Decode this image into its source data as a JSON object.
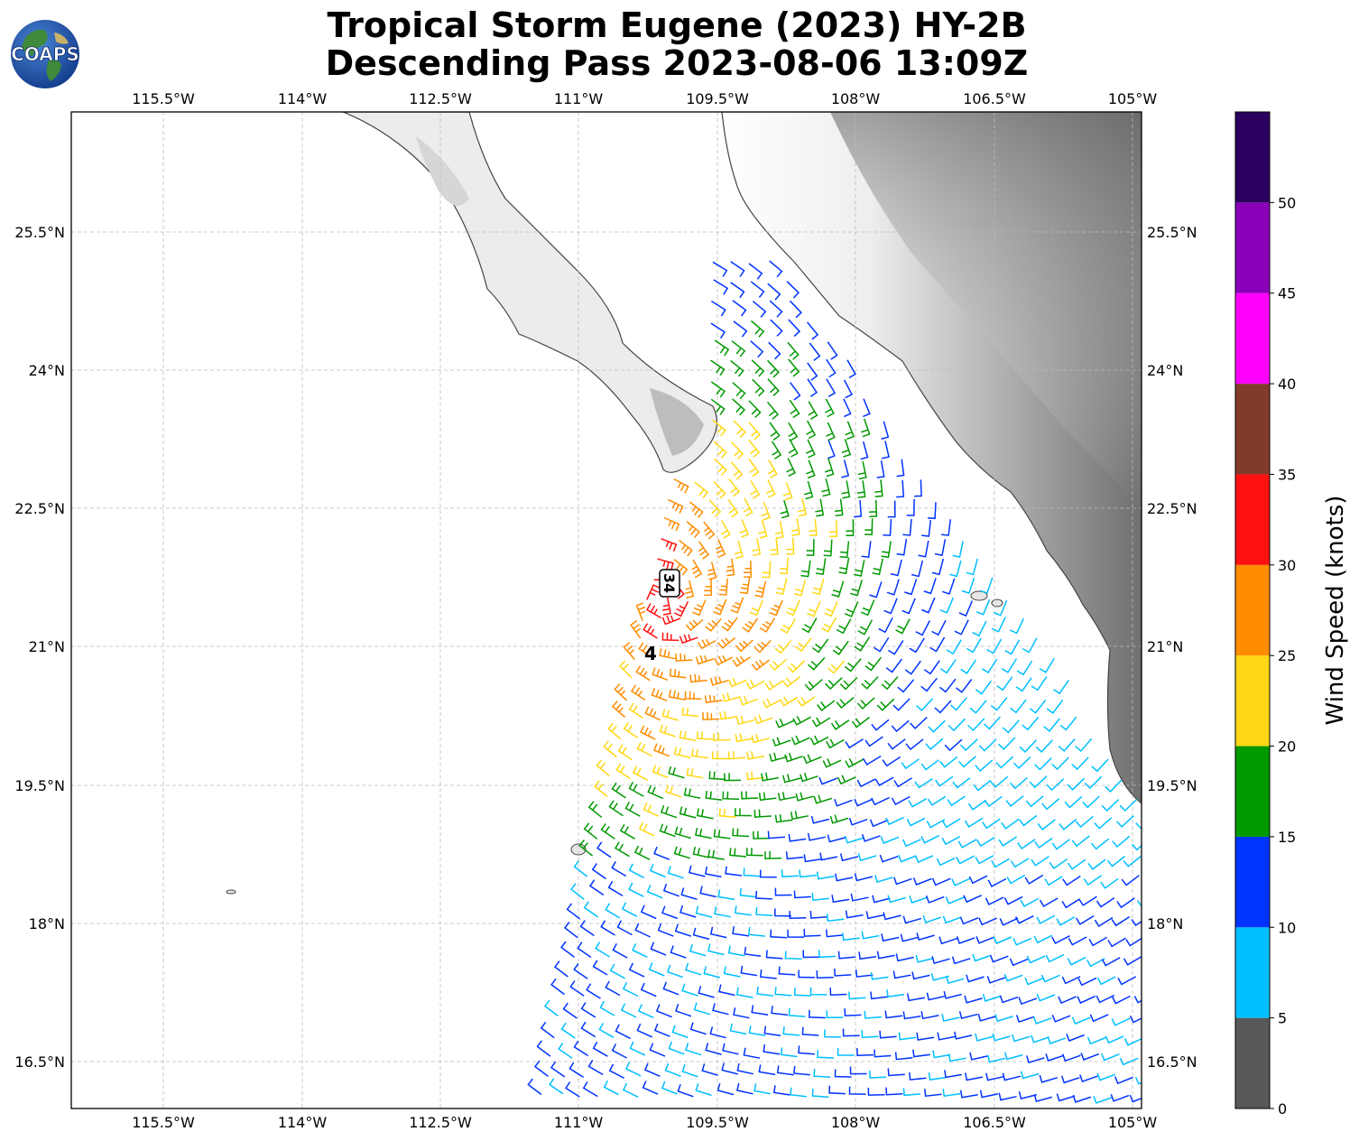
{
  "header": {
    "title_line1": "Tropical Storm Eugene (2023) HY-2B",
    "title_line2": "Descending Pass 2023-08-06 13:09Z",
    "logo_text": "COAPS"
  },
  "map": {
    "lon_labels": [
      "115.5°W",
      "114°W",
      "112.5°W",
      "111°W",
      "109.5°W",
      "108°W",
      "106.5°W",
      "105°W"
    ],
    "lat_labels": [
      "25.5°N",
      "24°N",
      "22.5°N",
      "21°N",
      "19.5°N",
      "18°N",
      "16.5°N"
    ],
    "lon_range": [
      -116.6,
      -105.1
    ],
    "lat_range": [
      16.0,
      26.8
    ],
    "storm_marker_label": "34",
    "storm_symbol": "4",
    "gridlines": true
  },
  "colorbar": {
    "label": "Wind Speed (knots)",
    "ticks": [
      "0",
      "5",
      "10",
      "15",
      "20",
      "25",
      "30",
      "35",
      "40",
      "45",
      "50"
    ],
    "bins": [
      {
        "from": 0,
        "to": 5,
        "color": "#585858"
      },
      {
        "from": 5,
        "to": 10,
        "color": "#00bfff"
      },
      {
        "from": 10,
        "to": 15,
        "color": "#0033ff"
      },
      {
        "from": 15,
        "to": 20,
        "color": "#009900"
      },
      {
        "from": 20,
        "to": 25,
        "color": "#ffd714"
      },
      {
        "from": 25,
        "to": 30,
        "color": "#ff8c00"
      },
      {
        "from": 30,
        "to": 35,
        "color": "#ff1111"
      },
      {
        "from": 35,
        "to": 40,
        "color": "#823b2a"
      },
      {
        "from": 40,
        "to": 45,
        "color": "#ff00ff"
      },
      {
        "from": 45,
        "to": 50,
        "color": "#8a00b8"
      },
      {
        "from": 50,
        "to": 55,
        "color": "#2b0061"
      }
    ]
  }
}
